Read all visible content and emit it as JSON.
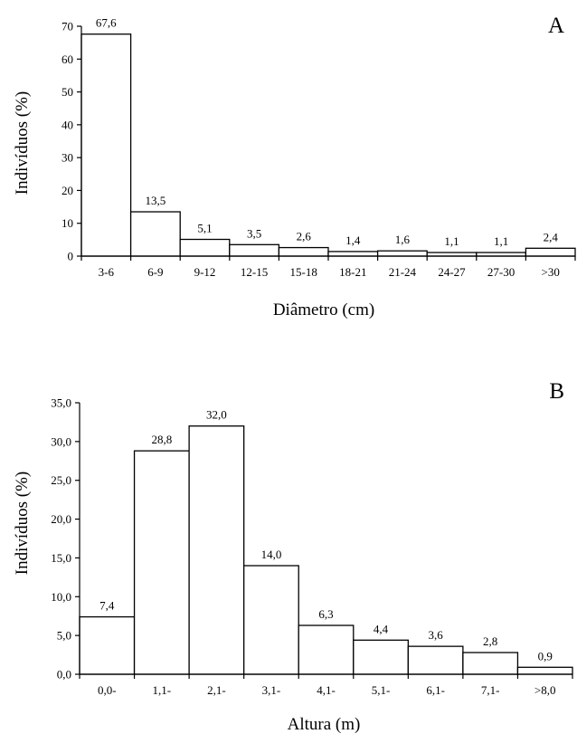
{
  "chart_data": [
    {
      "type": "bar",
      "panel_label": "A",
      "categories": [
        "3-6",
        "6-9",
        "9-12",
        "12-15",
        "15-18",
        "18-21",
        "21-24",
        "24-27",
        "27-30",
        ">30"
      ],
      "values": [
        67.6,
        13.5,
        5.1,
        3.5,
        2.6,
        1.4,
        1.6,
        1.1,
        1.1,
        2.4
      ],
      "value_labels": [
        "67,6",
        "13,5",
        "5,1",
        "3,5",
        "2,6",
        "1,4",
        "1,6",
        "1,1",
        "1,1",
        "2,4"
      ],
      "xlabel": "Diâmetro (cm)",
      "ylabel": "Indivíduos (%)",
      "ylim": [
        0,
        70
      ],
      "yticks": [
        0,
        10,
        20,
        30,
        40,
        50,
        60,
        70
      ],
      "ytick_labels": [
        "0",
        "10",
        "20",
        "30",
        "40",
        "50",
        "60",
        "70"
      ],
      "grid": false
    },
    {
      "type": "bar",
      "panel_label": "B",
      "categories": [
        "0,0-",
        "1,1-",
        "2,1-",
        "3,1-",
        "4,1-",
        "5,1-",
        "6,1-",
        "7,1-",
        ">8,0"
      ],
      "values": [
        7.4,
        28.8,
        32.0,
        14.0,
        6.3,
        4.4,
        3.6,
        2.8,
        0.9
      ],
      "value_labels": [
        "7,4",
        "28,8",
        "32,0",
        "14,0",
        "6,3",
        "4,4",
        "3,6",
        "2,8",
        "0,9"
      ],
      "xlabel": "Altura (m)",
      "ylabel": "Indivíduos (%)",
      "ylim": [
        0,
        35
      ],
      "yticks": [
        0,
        5,
        10,
        15,
        20,
        25,
        30,
        35
      ],
      "ytick_labels": [
        "0,0",
        "5,0",
        "10,0",
        "15,0",
        "20,0",
        "25,0",
        "30,0",
        "35,0"
      ],
      "grid": false
    }
  ]
}
